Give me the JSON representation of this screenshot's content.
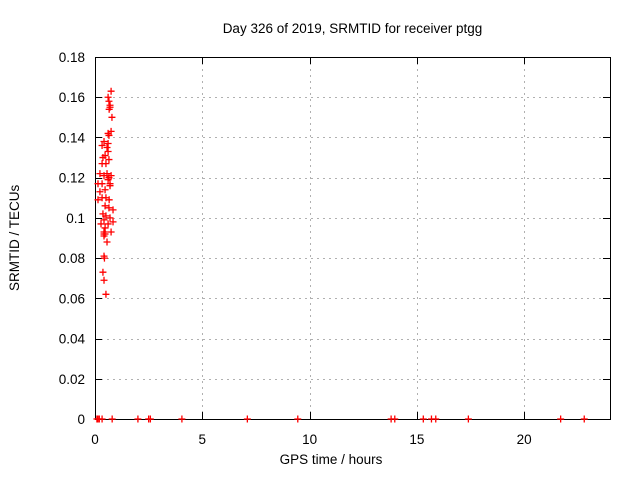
{
  "chart_data": {
    "type": "scatter",
    "title": "Day 326 of 2019, SRMTID for receiver ptgg",
    "xlabel": "GPS time / hours",
    "ylabel": "SRMTID / TECUs",
    "xlim": [
      0,
      24
    ],
    "ylim": [
      0,
      0.18
    ],
    "xticks": {
      "values": [
        0,
        5,
        10,
        15,
        20
      ],
      "labels": [
        "0",
        "5",
        "10",
        "15",
        "20"
      ]
    },
    "yticks": {
      "values": [
        0,
        0.02,
        0.04,
        0.06,
        0.08,
        0.1,
        0.12,
        0.14,
        0.16,
        0.18
      ],
      "labels": [
        "0",
        "0.02",
        "0.04",
        "0.06",
        "0.08",
        "0.1",
        "0.12",
        "0.14",
        "0.16",
        "0.18"
      ]
    },
    "grid": true,
    "grid_style": "dashed",
    "grid_color": "#b0b0b0",
    "border_color": "#000000",
    "legend": "none",
    "marker": "plus",
    "marker_color": "#ff0000",
    "points": [
      [
        0.75,
        0.163
      ],
      [
        0.61,
        0.16
      ],
      [
        0.65,
        0.158
      ],
      [
        0.7,
        0.156
      ],
      [
        0.7,
        0.155
      ],
      [
        0.66,
        0.154
      ],
      [
        0.79,
        0.15
      ],
      [
        0.75,
        0.143
      ],
      [
        0.61,
        0.142
      ],
      [
        0.65,
        0.141
      ],
      [
        0.42,
        0.138
      ],
      [
        0.61,
        0.137
      ],
      [
        0.33,
        0.136
      ],
      [
        0.56,
        0.135
      ],
      [
        0.61,
        0.133
      ],
      [
        0.47,
        0.131
      ],
      [
        0.37,
        0.13
      ],
      [
        0.65,
        0.129
      ],
      [
        0.33,
        0.127
      ],
      [
        0.51,
        0.127
      ],
      [
        0.23,
        0.122
      ],
      [
        0.56,
        0.122
      ],
      [
        0.75,
        0.121
      ],
      [
        0.42,
        0.121
      ],
      [
        0.65,
        0.12
      ],
      [
        0.61,
        0.119
      ],
      [
        0.14,
        0.117
      ],
      [
        0.33,
        0.117
      ],
      [
        0.7,
        0.117
      ],
      [
        0.7,
        0.116
      ],
      [
        0.47,
        0.114
      ],
      [
        0.23,
        0.113
      ],
      [
        0.33,
        0.11
      ],
      [
        0.51,
        0.11
      ],
      [
        0.14,
        0.109
      ],
      [
        0.66,
        0.109
      ],
      [
        0.47,
        0.106
      ],
      [
        0.65,
        0.105
      ],
      [
        0.84,
        0.104
      ],
      [
        0.37,
        0.102
      ],
      [
        0.51,
        0.101
      ],
      [
        0.7,
        0.1
      ],
      [
        0.42,
        0.099
      ],
      [
        0.84,
        0.098
      ],
      [
        0.61,
        0.097
      ],
      [
        0.28,
        0.097
      ],
      [
        0.47,
        0.095
      ],
      [
        0.42,
        0.093
      ],
      [
        0.75,
        0.093
      ],
      [
        0.42,
        0.092
      ],
      [
        0.47,
        0.092
      ],
      [
        0.42,
        0.091
      ],
      [
        0.56,
        0.088
      ],
      [
        0.42,
        0.081
      ],
      [
        0.44,
        0.08
      ],
      [
        0.37,
        0.073
      ],
      [
        0.42,
        0.069
      ],
      [
        0.51,
        0.062
      ],
      [
        0.09,
        0
      ],
      [
        0.14,
        0
      ],
      [
        0.2,
        0
      ],
      [
        0.33,
        0
      ],
      [
        0.8,
        0
      ],
      [
        2.0,
        0
      ],
      [
        2.5,
        0
      ],
      [
        2.58,
        0
      ],
      [
        4.05,
        0
      ],
      [
        7.1,
        0
      ],
      [
        9.45,
        0
      ],
      [
        13.8,
        0
      ],
      [
        13.97,
        0
      ],
      [
        15.3,
        0
      ],
      [
        15.68,
        0
      ],
      [
        15.88,
        0
      ],
      [
        17.4,
        0
      ],
      [
        21.7,
        0
      ],
      [
        22.8,
        0
      ]
    ]
  }
}
